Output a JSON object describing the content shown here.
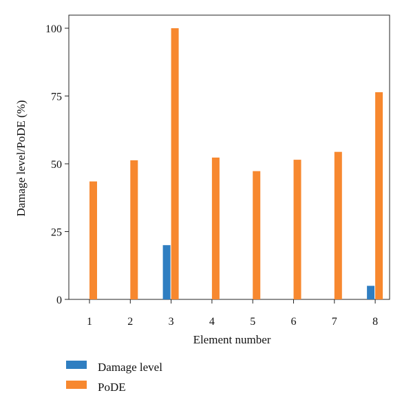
{
  "chart_data": {
    "type": "bar",
    "title": "",
    "xlabel": "Element number",
    "ylabel": "Damage level/PoDE (%)",
    "categories": [
      "1",
      "2",
      "3",
      "4",
      "5",
      "6",
      "7",
      "8"
    ],
    "ylim": [
      0,
      100
    ],
    "yticks": [
      0,
      25,
      50,
      75,
      100
    ],
    "grid": false,
    "legend_position": "bottom-left",
    "series": [
      {
        "name": "Damage level",
        "color": "#2f7ec1",
        "values": [
          0,
          0,
          20,
          0,
          0,
          0,
          0,
          5
        ]
      },
      {
        "name": "PoDE",
        "color": "#f7882f",
        "values": [
          43.5,
          51.3,
          100,
          52.3,
          47.3,
          51.5,
          54.4,
          76.4
        ]
      }
    ]
  }
}
